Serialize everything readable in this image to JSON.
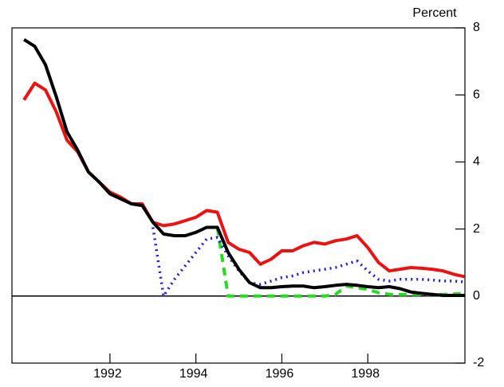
{
  "chart_data": {
    "type": "line",
    "y_label": "Percent",
    "x": [
      1990,
      1990.25,
      1990.5,
      1990.75,
      1991,
      1991.25,
      1991.5,
      1991.75,
      1992,
      1992.25,
      1992.5,
      1992.75,
      1993,
      1993.25,
      1993.5,
      1993.75,
      1994,
      1994.25,
      1994.5,
      1994.75,
      1995,
      1995.25,
      1995.5,
      1995.75,
      1996,
      1996.25,
      1996.5,
      1996.75,
      1997,
      1997.25,
      1997.5,
      1997.75,
      1998,
      1998.25,
      1998.5,
      1998.75,
      1999,
      1999.25,
      1999.5,
      1999.75,
      2000,
      2000.25
    ],
    "series": [
      {
        "color": "#000000",
        "dash": "solid",
        "values": [
          7.65,
          7.45,
          6.9,
          5.95,
          4.9,
          4.35,
          3.7,
          3.4,
          3.05,
          2.9,
          2.75,
          2.7,
          2.2,
          1.85,
          1.8,
          1.8,
          1.9,
          2.05,
          2.05,
          1.3,
          0.8,
          0.4,
          0.25,
          0.25,
          0.28,
          0.3,
          0.3,
          0.25,
          0.28,
          0.32,
          0.35,
          0.32,
          0.28,
          0.25,
          0.28,
          0.22,
          0.12,
          0.08,
          0.05,
          0.02,
          0.02,
          0.02
        ]
      },
      {
        "color": "#ee1111",
        "dash": "solid",
        "values": [
          5.85,
          6.35,
          6.15,
          5.5,
          4.65,
          4.3,
          3.7,
          3.4,
          3.1,
          2.95,
          2.75,
          2.75,
          2.2,
          2.1,
          2.15,
          2.25,
          2.35,
          2.55,
          2.5,
          1.6,
          1.4,
          1.3,
          0.95,
          1.1,
          1.35,
          1.35,
          1.5,
          1.6,
          1.55,
          1.65,
          1.7,
          1.8,
          1.45,
          1.0,
          0.75,
          0.8,
          0.85,
          0.83,
          0.8,
          0.75,
          0.65,
          0.58
        ]
      },
      {
        "color": "#1a1aee",
        "dash": "dot",
        "values": [
          null,
          null,
          null,
          null,
          null,
          null,
          null,
          null,
          null,
          null,
          null,
          null,
          2.05,
          0.0,
          0.5,
          0.9,
          1.3,
          1.7,
          1.75,
          1.2,
          0.75,
          0.4,
          0.35,
          0.45,
          0.55,
          0.6,
          0.7,
          0.75,
          0.8,
          0.85,
          0.95,
          1.05,
          0.75,
          0.5,
          0.45,
          0.5,
          0.5,
          0.5,
          0.48,
          0.45,
          0.45,
          0.42
        ]
      },
      {
        "color": "#22dd22",
        "dash": "dash",
        "values": [
          null,
          null,
          null,
          null,
          null,
          null,
          null,
          null,
          null,
          null,
          null,
          null,
          null,
          null,
          null,
          null,
          null,
          null,
          2.05,
          0.0,
          0.0,
          0.0,
          0.0,
          0.0,
          0.0,
          0.0,
          0.0,
          0.0,
          0.0,
          0.05,
          0.3,
          0.25,
          0.2,
          0.1,
          0.05,
          0.05,
          0.05,
          0.05,
          0.05,
          0.05,
          0.06,
          0.08
        ]
      }
    ],
    "xlim": [
      1989.72,
      2000.26
    ],
    "xticks": [
      1992,
      1994,
      1996,
      1998
    ],
    "ylim": [
      -2,
      8
    ],
    "yticks": [
      -2,
      0,
      2,
      4,
      6,
      8
    ],
    "zero_line": true
  }
}
